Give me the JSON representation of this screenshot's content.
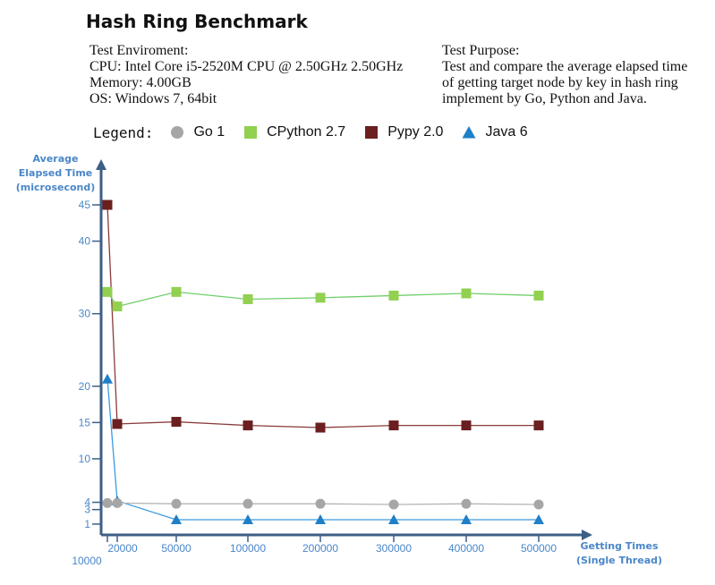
{
  "header": {
    "title": "Hash Ring Benchmark",
    "environment": {
      "heading": "Test Enviroment:",
      "cpu": "CPU: Intel Core i5-2520M CPU @ 2.50GHz 2.50GHz",
      "memory": "Memory: 4.00GB",
      "os": "OS: Windows 7, 64bit"
    },
    "purpose": {
      "heading": "Test Purpose:",
      "line1": "Test and compare the average elapsed time",
      "line2": "of getting target node by key in hash ring",
      "line3": "implement by Go, Python and Java."
    }
  },
  "legend": {
    "title": "Legend:",
    "entries": [
      {
        "label": "Go 1",
        "marker": "circle",
        "color": "#a6a6a6"
      },
      {
        "label": "CPython 2.7",
        "marker": "square",
        "color": "#92d050"
      },
      {
        "label": "Pypy 2.0",
        "marker": "square",
        "color": "#6b1f1f"
      },
      {
        "label": "Java 6",
        "marker": "triangle",
        "color": "#1f7fc8"
      }
    ]
  },
  "colors": {
    "axis": "#3d5f86",
    "tick_text": "#4a86c8",
    "go": "#a6a6a6",
    "cpython": "#92d050",
    "pypy": "#6b1f1f",
    "java": "#1f7fc8"
  },
  "chart_data": {
    "type": "line",
    "title": "Hash Ring Benchmark",
    "ylabel_lines": [
      "Average",
      "Elapsed Time",
      "(microsecond)"
    ],
    "xlabel_lines": [
      "Getting Times",
      "(Single Thread)"
    ],
    "categories": [
      "10000",
      "20000",
      "50000",
      "100000",
      "200000",
      "300000",
      "400000",
      "500000"
    ],
    "x_tick_labels": [
      "20000",
      "50000",
      "100000",
      "200000",
      "300000",
      "400000",
      "500000"
    ],
    "x_extra_label": "10000",
    "y_ticks": [
      1,
      3,
      4,
      10,
      15,
      20,
      30,
      40,
      45
    ],
    "ylim": [
      0,
      48
    ],
    "grid": false,
    "legend_position": "top",
    "series": [
      {
        "name": "Go 1",
        "marker": "circle",
        "values": [
          3.9,
          3.9,
          3.8,
          3.8,
          3.8,
          3.7,
          3.8,
          3.7
        ]
      },
      {
        "name": "CPython 2.7",
        "marker": "square",
        "values": [
          33,
          31,
          33,
          32,
          32.2,
          32.5,
          32.8,
          32.5
        ]
      },
      {
        "name": "Pypy 2.0",
        "marker": "square",
        "values": [
          45,
          14.8,
          15.1,
          14.6,
          14.3,
          14.6,
          14.6,
          14.6
        ]
      },
      {
        "name": "Java 6",
        "marker": "triangle",
        "values": [
          21,
          4.2,
          1.6,
          1.6,
          1.6,
          1.6,
          1.6,
          1.6
        ]
      }
    ]
  }
}
